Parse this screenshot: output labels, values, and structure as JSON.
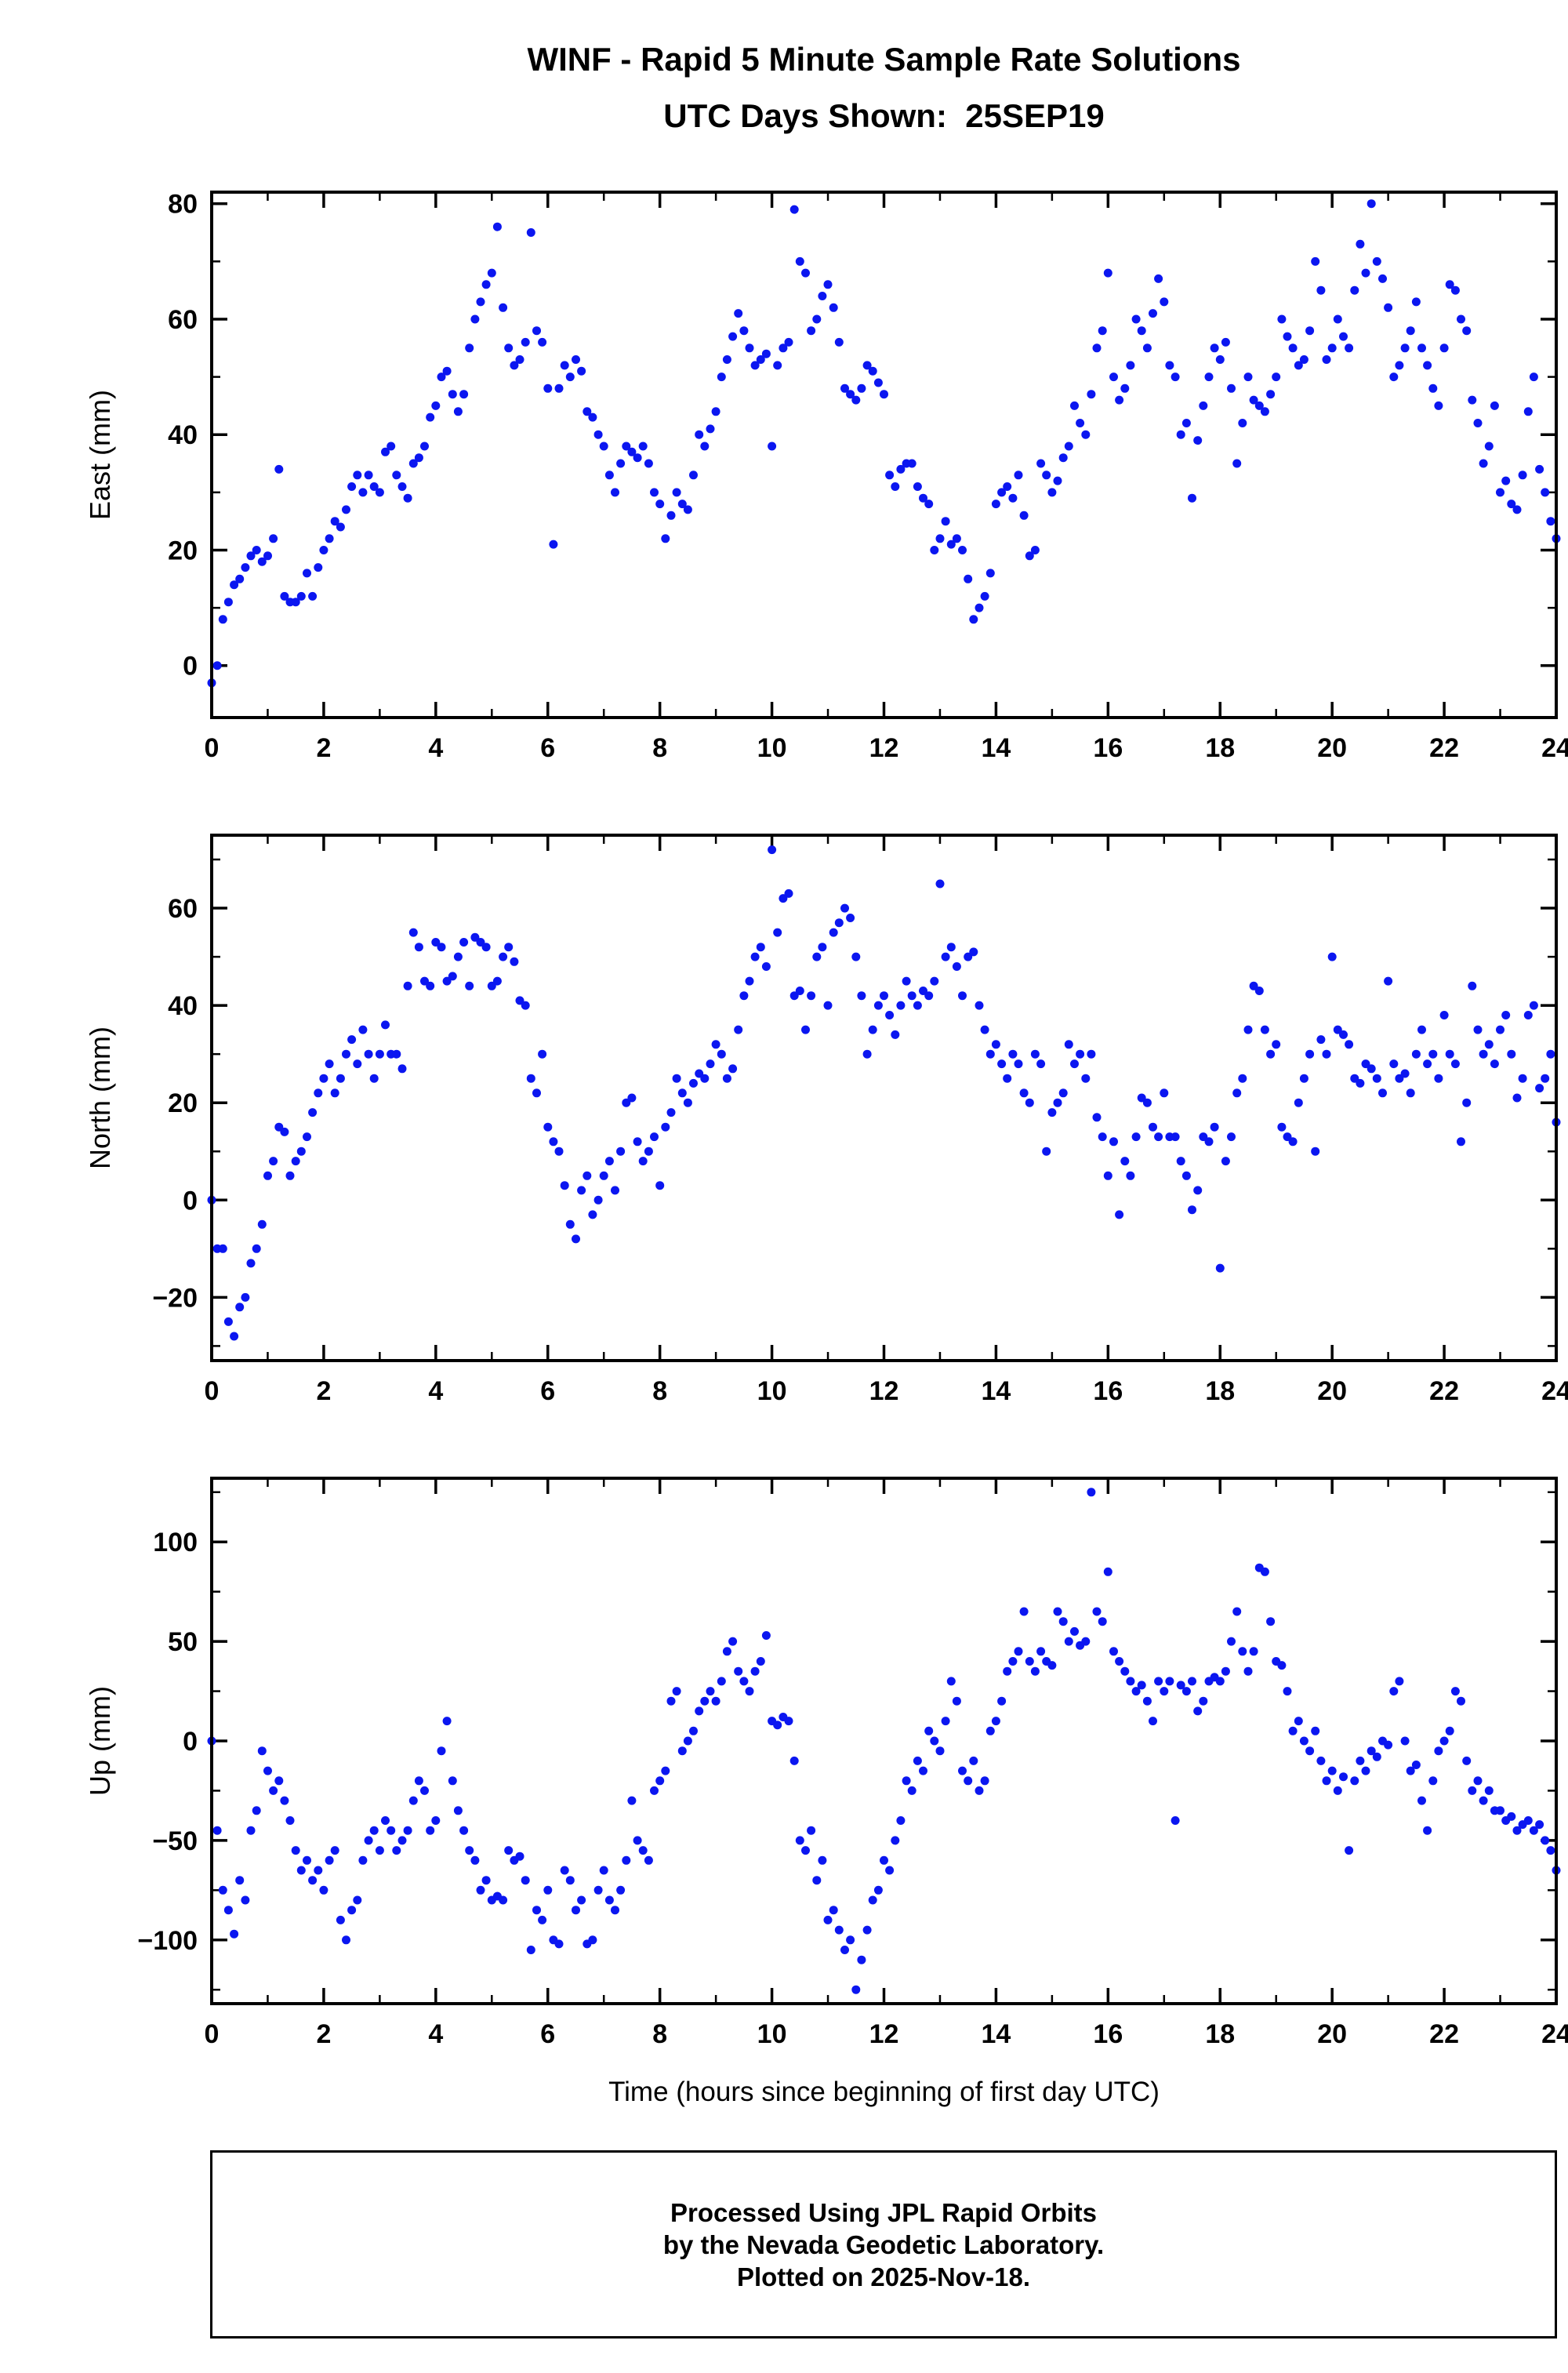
{
  "header": {
    "title": "WINF - Rapid 5 Minute Sample Rate Solutions",
    "subtitle": "UTC Days Shown:  25SEP19"
  },
  "footer": {
    "line1": "Processed Using JPL Rapid Orbits",
    "line2": "by the Nevada Geodetic Laboratory.",
    "line3": "Plotted on 2025-Nov-18."
  },
  "chart_data": {
    "type": "scatter",
    "title": "WINF - Rapid 5 Minute Sample Rate Solutions",
    "subtitle": "UTC Days Shown:  25SEP19",
    "xlabel": "Time (hours since beginning of first day UTC)",
    "point_color": "#0b16f0",
    "frame_color": "#000000",
    "legend": "none",
    "grid": false,
    "xlim": [
      0,
      24
    ],
    "xticks": [
      0,
      2,
      4,
      6,
      8,
      10,
      12,
      14,
      16,
      18,
      20,
      22,
      24
    ],
    "xtick_minor": 1,
    "x": [
      0,
      0.1,
      0.2,
      0.3,
      0.4,
      0.5,
      0.6,
      0.7,
      0.8,
      0.9,
      1,
      1.1,
      1.2,
      1.3,
      1.4,
      1.5,
      1.6,
      1.7,
      1.8,
      1.9,
      2,
      2.1,
      2.2,
      2.3,
      2.4,
      2.5,
      2.6,
      2.7,
      2.8,
      2.9,
      3,
      3.1,
      3.2,
      3.3,
      3.4,
      3.5,
      3.6,
      3.7,
      3.8,
      3.9,
      4,
      4.1,
      4.2,
      4.3,
      4.4,
      4.5,
      4.6,
      4.7,
      4.8,
      4.9,
      5,
      5.1,
      5.2,
      5.3,
      5.4,
      5.5,
      5.6,
      5.7,
      5.8,
      5.9,
      6,
      6.1,
      6.2,
      6.3,
      6.4,
      6.5,
      6.6,
      6.7,
      6.8,
      6.9,
      7,
      7.1,
      7.2,
      7.3,
      7.4,
      7.5,
      7.6,
      7.7,
      7.8,
      7.9,
      8,
      8.1,
      8.2,
      8.3,
      8.4,
      8.5,
      8.6,
      8.7,
      8.8,
      8.9,
      9,
      9.1,
      9.2,
      9.3,
      9.4,
      9.5,
      9.6,
      9.7,
      9.8,
      9.9,
      10,
      10.1,
      10.2,
      10.3,
      10.4,
      10.5,
      10.6,
      10.7,
      10.8,
      10.9,
      11,
      11.1,
      11.2,
      11.3,
      11.4,
      11.5,
      11.6,
      11.7,
      11.8,
      11.9,
      12,
      12.1,
      12.2,
      12.3,
      12.4,
      12.5,
      12.6,
      12.7,
      12.8,
      12.9,
      13,
      13.1,
      13.2,
      13.3,
      13.4,
      13.5,
      13.6,
      13.7,
      13.8,
      13.9,
      14,
      14.1,
      14.2,
      14.3,
      14.4,
      14.5,
      14.6,
      14.7,
      14.8,
      14.9,
      15,
      15.1,
      15.2,
      15.3,
      15.4,
      15.5,
      15.6,
      15.7,
      15.8,
      15.9,
      16,
      16.1,
      16.2,
      16.3,
      16.4,
      16.5,
      16.6,
      16.7,
      16.8,
      16.9,
      17,
      17.1,
      17.2,
      17.3,
      17.4,
      17.5,
      17.6,
      17.7,
      17.8,
      17.9,
      18,
      18.1,
      18.2,
      18.3,
      18.4,
      18.5,
      18.6,
      18.7,
      18.8,
      18.9,
      19,
      19.1,
      19.2,
      19.3,
      19.4,
      19.5,
      19.6,
      19.7,
      19.8,
      19.9,
      20,
      20.1,
      20.2,
      20.3,
      20.4,
      20.5,
      20.6,
      20.7,
      20.8,
      20.9,
      21,
      21.1,
      21.2,
      21.3,
      21.4,
      21.5,
      21.6,
      21.7,
      21.8,
      21.9,
      22,
      22.1,
      22.2,
      22.3,
      22.4,
      22.5,
      22.6,
      22.7,
      22.8,
      22.9,
      23,
      23.1,
      23.2,
      23.3,
      23.4,
      23.5,
      23.6,
      23.7,
      23.8,
      23.9,
      24
    ],
    "panels": [
      {
        "name": "east",
        "ylabel": "East (mm)",
        "ylim": [
          -9,
          82
        ],
        "yticks": [
          0,
          20,
          40,
          60,
          80
        ],
        "ytick_minor": 10,
        "values": [
          -3,
          0,
          8,
          11,
          14,
          15,
          17,
          19,
          20,
          18,
          19,
          22,
          34,
          12,
          11,
          11,
          12,
          16,
          12,
          17,
          20,
          22,
          25,
          24,
          27,
          31,
          33,
          30,
          33,
          31,
          30,
          37,
          38,
          33,
          31,
          29,
          35,
          36,
          38,
          43,
          45,
          50,
          51,
          47,
          44,
          47,
          55,
          60,
          63,
          66,
          68,
          76,
          62,
          55,
          52,
          53,
          56,
          75,
          58,
          56,
          48,
          21,
          48,
          52,
          50,
          53,
          51,
          44,
          43,
          40,
          38,
          33,
          30,
          35,
          38,
          37,
          36,
          38,
          35,
          30,
          28,
          22,
          26,
          30,
          28,
          27,
          33,
          40,
          38,
          41,
          44,
          50,
          53,
          57,
          61,
          58,
          55,
          52,
          53,
          54,
          38,
          52,
          55,
          56,
          79,
          70,
          68,
          58,
          60,
          64,
          66,
          62,
          56,
          48,
          47,
          46,
          48,
          52,
          51,
          49,
          47,
          33,
          31,
          34,
          35,
          35,
          31,
          29,
          28,
          20,
          22,
          25,
          21,
          22,
          20,
          15,
          8,
          10,
          12,
          16,
          28,
          30,
          31,
          29,
          33,
          26,
          19,
          20,
          35,
          33,
          30,
          32,
          36,
          38,
          45,
          42,
          40,
          47,
          55,
          58,
          68,
          50,
          46,
          48,
          52,
          60,
          58,
          55,
          61,
          67,
          63,
          52,
          50,
          40,
          42,
          29,
          39,
          45,
          50,
          55,
          53,
          56,
          48,
          35,
          42,
          50,
          46,
          45,
          44,
          47,
          50,
          60,
          57,
          55,
          52,
          53,
          58,
          70,
          65,
          53,
          55,
          60,
          57,
          55,
          65,
          73,
          68,
          80,
          70,
          67,
          62,
          50,
          52,
          55,
          58,
          63,
          55,
          52,
          48,
          45,
          55,
          66,
          65,
          60,
          58,
          46,
          42,
          35,
          38,
          45,
          30,
          32,
          28,
          27,
          33,
          44,
          50,
          34,
          30,
          25,
          22
        ]
      },
      {
        "name": "north",
        "ylabel": "North (mm)",
        "ylim": [
          -33,
          75
        ],
        "yticks": [
          -20,
          0,
          20,
          40,
          60
        ],
        "ytick_minor": 10,
        "values": [
          0,
          -10,
          -10,
          -25,
          -28,
          -22,
          -20,
          -13,
          -10,
          -5,
          5,
          8,
          15,
          14,
          5,
          8,
          10,
          13,
          18,
          22,
          25,
          28,
          22,
          25,
          30,
          33,
          28,
          35,
          30,
          25,
          30,
          36,
          30,
          30,
          27,
          44,
          55,
          52,
          45,
          44,
          53,
          52,
          45,
          46,
          50,
          53,
          44,
          54,
          53,
          52,
          44,
          45,
          50,
          52,
          49,
          41,
          40,
          25,
          22,
          30,
          15,
          12,
          10,
          3,
          -5,
          -8,
          2,
          5,
          -3,
          0,
          5,
          8,
          2,
          10,
          20,
          21,
          12,
          8,
          10,
          13,
          3,
          15,
          18,
          25,
          22,
          20,
          24,
          26,
          25,
          28,
          32,
          30,
          25,
          27,
          35,
          42,
          45,
          50,
          52,
          48,
          72,
          55,
          62,
          63,
          42,
          43,
          35,
          42,
          50,
          52,
          40,
          55,
          57,
          60,
          58,
          50,
          42,
          30,
          35,
          40,
          42,
          38,
          34,
          40,
          45,
          42,
          40,
          43,
          42,
          45,
          65,
          50,
          52,
          48,
          42,
          50,
          51,
          40,
          35,
          30,
          32,
          28,
          25,
          30,
          28,
          22,
          20,
          30,
          28,
          10,
          18,
          20,
          22,
          32,
          28,
          30,
          25,
          30,
          17,
          13,
          5,
          12,
          -3,
          8,
          5,
          13,
          21,
          20,
          15,
          13,
          22,
          13,
          13,
          8,
          5,
          -2,
          2,
          13,
          12,
          15,
          -14,
          8,
          13,
          22,
          25,
          35,
          44,
          43,
          35,
          30,
          32,
          15,
          13,
          12,
          20,
          25,
          30,
          10,
          33,
          30,
          50,
          35,
          34,
          32,
          25,
          24,
          28,
          27,
          25,
          22,
          45,
          28,
          25,
          26,
          22,
          30,
          35,
          28,
          30,
          25,
          38,
          30,
          28,
          12,
          20,
          44,
          35,
          30,
          32,
          28,
          35,
          38,
          30,
          21,
          25,
          38,
          40,
          23,
          25,
          30,
          16
        ]
      },
      {
        "name": "up",
        "ylabel": "Up (mm)",
        "ylim": [
          -132,
          132
        ],
        "yticks": [
          -100,
          -50,
          0,
          50,
          100
        ],
        "ytick_minor": 25,
        "values": [
          0,
          -45,
          -75,
          -85,
          -97,
          -70,
          -80,
          -45,
          -35,
          -5,
          -15,
          -25,
          -20,
          -30,
          -40,
          -55,
          -65,
          -60,
          -70,
          -65,
          -75,
          -60,
          -55,
          -90,
          -100,
          -85,
          -80,
          -60,
          -50,
          -45,
          -55,
          -40,
          -45,
          -55,
          -50,
          -45,
          -30,
          -20,
          -25,
          -45,
          -40,
          -5,
          10,
          -20,
          -35,
          -45,
          -55,
          -60,
          -75,
          -70,
          -80,
          -78,
          -80,
          -55,
          -60,
          -58,
          -70,
          -105,
          -85,
          -90,
          -75,
          -100,
          -102,
          -65,
          -70,
          -85,
          -80,
          -102,
          -100,
          -75,
          -65,
          -80,
          -85,
          -75,
          -60,
          -30,
          -50,
          -55,
          -60,
          -25,
          -20,
          -15,
          20,
          25,
          -5,
          0,
          5,
          15,
          20,
          25,
          20,
          30,
          45,
          50,
          35,
          30,
          25,
          35,
          40,
          53,
          10,
          8,
          12,
          10,
          -10,
          -50,
          -55,
          -45,
          -70,
          -60,
          -90,
          -85,
          -95,
          -105,
          -100,
          -125,
          -110,
          -95,
          -80,
          -75,
          -60,
          -65,
          -50,
          -40,
          -20,
          -25,
          -10,
          -15,
          5,
          0,
          -5,
          10,
          30,
          20,
          -15,
          -20,
          -10,
          -25,
          -20,
          5,
          10,
          20,
          35,
          40,
          45,
          65,
          40,
          35,
          45,
          40,
          38,
          65,
          60,
          50,
          55,
          48,
          50,
          125,
          65,
          60,
          85,
          45,
          40,
          35,
          30,
          25,
          28,
          20,
          10,
          30,
          25,
          30,
          -40,
          28,
          25,
          30,
          15,
          20,
          30,
          32,
          30,
          35,
          50,
          65,
          45,
          35,
          45,
          87,
          85,
          60,
          40,
          38,
          25,
          5,
          10,
          0,
          -5,
          5,
          -10,
          -20,
          -15,
          -25,
          -18,
          -55,
          -20,
          -10,
          -15,
          -5,
          -8,
          0,
          -2,
          25,
          30,
          0,
          -15,
          -12,
          -30,
          -45,
          -20,
          -5,
          0,
          5,
          25,
          20,
          -10,
          -25,
          -20,
          -30,
          -25,
          -35,
          -35,
          -40,
          -38,
          -45,
          -42,
          -40,
          -45,
          -42,
          -50,
          -55,
          -65
        ]
      }
    ]
  }
}
